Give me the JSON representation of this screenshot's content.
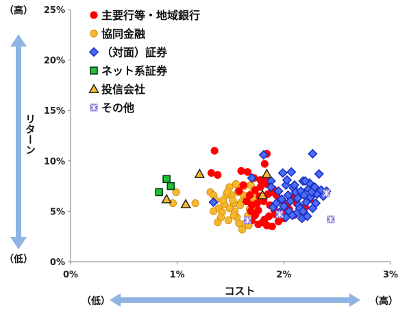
{
  "chart_data": {
    "type": "scatter",
    "title": "",
    "xlabel": "コスト",
    "ylabel": "リターン",
    "xlim": [
      0,
      3
    ],
    "ylim": [
      0,
      25
    ],
    "x_unit": "%",
    "y_unit": "%",
    "x_ticks": [
      "0%",
      "1%",
      "2%",
      "3%"
    ],
    "y_ticks": [
      "0%",
      "5%",
      "10%",
      "15%",
      "20%",
      "25%"
    ],
    "grid": false,
    "legend_position": "top-left",
    "annotations": {
      "y_high": "（高）",
      "y_low": "（低）",
      "x_low": "（低）",
      "x_high": "（高）"
    },
    "arrow_color": "#8fb4e3",
    "series": [
      {
        "name": "主要行等・地域銀行",
        "marker": "circle",
        "color": "#ff0000",
        "stroke": "#ff0000",
        "points": [
          [
            1.35,
            11.0
          ],
          [
            1.32,
            8.8
          ],
          [
            1.38,
            8.6
          ],
          [
            1.6,
            9.0
          ],
          [
            1.66,
            8.9
          ],
          [
            1.82,
            9.7
          ],
          [
            1.84,
            10.7
          ],
          [
            1.72,
            8.3
          ],
          [
            1.78,
            8.1
          ],
          [
            1.8,
            7.9
          ],
          [
            1.84,
            7.7
          ],
          [
            1.9,
            7.2
          ],
          [
            1.88,
            6.9
          ],
          [
            1.93,
            6.6
          ],
          [
            1.96,
            6.2
          ],
          [
            1.99,
            6.0
          ],
          [
            2.02,
            5.5
          ],
          [
            2.05,
            5.2
          ],
          [
            1.98,
            4.9
          ],
          [
            1.92,
            4.7
          ],
          [
            1.86,
            4.5
          ],
          [
            1.82,
            4.2
          ],
          [
            1.8,
            3.9
          ],
          [
            1.84,
            3.6
          ],
          [
            1.89,
            3.5
          ],
          [
            1.76,
            3.7
          ],
          [
            1.7,
            4.1
          ],
          [
            1.73,
            4.6
          ],
          [
            1.76,
            5.1
          ],
          [
            1.7,
            5.6
          ],
          [
            1.65,
            6.0
          ],
          [
            1.68,
            6.6
          ],
          [
            1.73,
            7.1
          ],
          [
            1.62,
            7.6
          ],
          [
            1.58,
            7.0
          ],
          [
            1.77,
            6.5
          ],
          [
            1.81,
            6.0
          ],
          [
            1.87,
            5.6
          ],
          [
            1.91,
            5.1
          ],
          [
            1.94,
            4.8
          ],
          [
            2.08,
            6.4
          ],
          [
            2.12,
            5.8
          ],
          [
            2.15,
            5.0
          ],
          [
            2.2,
            5.4
          ],
          [
            2.25,
            6.2
          ],
          [
            2.09,
            4.6
          ],
          [
            2.0,
            4.3
          ],
          [
            1.95,
            4.0
          ],
          [
            1.85,
            6.7
          ],
          [
            1.78,
            7.4
          ],
          [
            1.83,
            8.3
          ],
          [
            1.75,
            5.8
          ],
          [
            1.69,
            5.0
          ]
        ]
      },
      {
        "name": "協同金融",
        "marker": "circle",
        "color": "#f7b731",
        "stroke": "#c98a00",
        "points": [
          [
            0.99,
            6.9
          ],
          [
            0.96,
            5.8
          ],
          [
            1.17,
            5.8
          ],
          [
            1.31,
            6.9
          ],
          [
            1.34,
            6.6
          ],
          [
            1.39,
            5.3
          ],
          [
            1.34,
            5.0
          ],
          [
            1.42,
            4.9
          ],
          [
            1.44,
            5.7
          ],
          [
            1.46,
            6.6
          ],
          [
            1.49,
            7.4
          ],
          [
            1.51,
            6.6
          ],
          [
            1.53,
            5.8
          ],
          [
            1.54,
            5.0
          ],
          [
            1.56,
            4.4
          ],
          [
            1.58,
            3.8
          ],
          [
            1.61,
            3.2
          ],
          [
            1.64,
            3.8
          ],
          [
            1.66,
            4.5
          ],
          [
            1.68,
            5.2
          ],
          [
            1.6,
            5.9
          ],
          [
            1.62,
            6.6
          ],
          [
            1.58,
            7.3
          ],
          [
            1.55,
            7.7
          ],
          [
            1.63,
            7.5
          ],
          [
            1.7,
            6.8
          ],
          [
            1.72,
            6.1
          ],
          [
            1.74,
            5.4
          ],
          [
            1.48,
            4.1
          ],
          [
            1.38,
            3.9
          ],
          [
            1.43,
            6.1
          ],
          [
            1.49,
            5.3
          ],
          [
            1.52,
            6.1
          ],
          [
            1.57,
            6.9
          ],
          [
            1.65,
            6.2
          ],
          [
            1.67,
            3.6
          ],
          [
            1.53,
            4.6
          ],
          [
            1.36,
            6.1
          ],
          [
            1.47,
            6.9
          ],
          [
            1.69,
            7.6
          ],
          [
            1.74,
            4.8
          ],
          [
            1.41,
            4.4
          ],
          [
            1.59,
            5.6
          ],
          [
            1.71,
            5.7
          ],
          [
            1.84,
            10.7
          ]
        ]
      },
      {
        "name": "（対面）証券",
        "marker": "diamond",
        "color": "#4a6cf7",
        "stroke": "#1a2fbf",
        "points": [
          [
            1.34,
            5.9
          ],
          [
            1.7,
            8.3
          ],
          [
            1.81,
            10.6
          ],
          [
            1.88,
            8.0
          ],
          [
            1.88,
            7.4
          ],
          [
            1.9,
            5.4
          ],
          [
            1.95,
            7.0
          ],
          [
            1.98,
            6.2
          ],
          [
            1.99,
            8.8
          ],
          [
            2.02,
            7.6
          ],
          [
            2.04,
            6.6
          ],
          [
            2.06,
            6.0
          ],
          [
            2.07,
            8.9
          ],
          [
            2.09,
            7.3
          ],
          [
            2.11,
            6.9
          ],
          [
            2.13,
            6.3
          ],
          [
            2.14,
            5.6
          ],
          [
            2.16,
            7.0
          ],
          [
            2.18,
            8.0
          ],
          [
            2.19,
            6.6
          ],
          [
            2.21,
            5.9
          ],
          [
            2.23,
            7.2
          ],
          [
            2.25,
            6.4
          ],
          [
            2.27,
            10.7
          ],
          [
            2.29,
            7.4
          ],
          [
            2.31,
            6.7
          ],
          [
            2.33,
            8.7
          ],
          [
            2.35,
            7.1
          ],
          [
            2.37,
            6.5
          ],
          [
            2.0,
            5.5
          ],
          [
            2.05,
            5.0
          ],
          [
            2.12,
            4.8
          ],
          [
            2.17,
            4.3
          ],
          [
            2.22,
            4.5
          ],
          [
            2.27,
            5.3
          ],
          [
            2.24,
            7.8
          ],
          [
            2.02,
            4.4
          ],
          [
            1.96,
            4.9
          ],
          [
            2.08,
            4.6
          ],
          [
            2.15,
            5.3
          ],
          [
            2.2,
            8.0
          ],
          [
            2.1,
            7.6
          ],
          [
            2.26,
            6.9
          ],
          [
            2.3,
            5.8
          ],
          [
            2.18,
            5.0
          ],
          [
            1.93,
            5.8
          ],
          [
            2.03,
            8.1
          ],
          [
            2.4,
            7.0
          ]
        ]
      },
      {
        "name": "ネット系証券",
        "marker": "square",
        "color": "#1fbf3b",
        "stroke": "#0a3d12",
        "points": [
          [
            0.83,
            6.9
          ],
          [
            0.9,
            8.2
          ],
          [
            0.94,
            7.5
          ]
        ]
      },
      {
        "name": "投信会社",
        "marker": "triangle",
        "color": "#f7b731",
        "stroke": "#222222",
        "points": [
          [
            0.9,
            6.2
          ],
          [
            1.08,
            5.7
          ],
          [
            1.21,
            8.7
          ],
          [
            1.8,
            6.6
          ],
          [
            1.84,
            8.7
          ]
        ]
      },
      {
        "name": "その他",
        "marker": "square-x",
        "color": "#8d7bd8",
        "stroke": "#ffffff",
        "points": [
          [
            1.66,
            4.1
          ],
          [
            1.96,
            4.7
          ],
          [
            2.44,
            4.2
          ],
          [
            2.4,
            6.8
          ]
        ]
      }
    ]
  }
}
